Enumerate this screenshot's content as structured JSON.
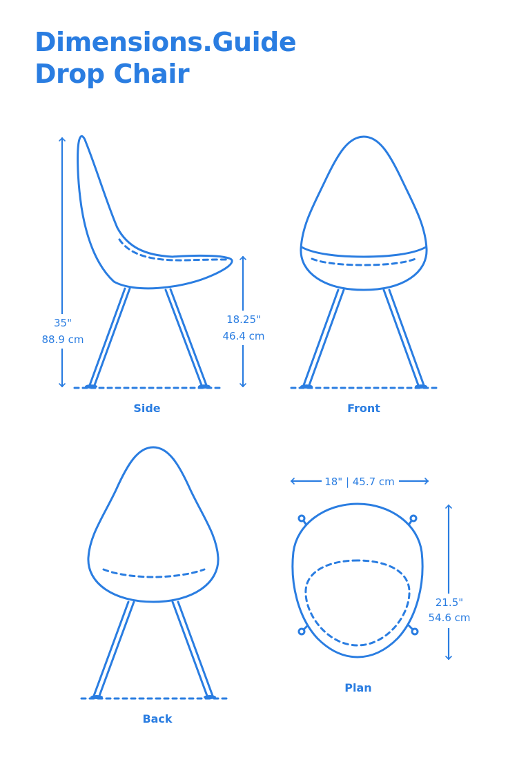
{
  "header": {
    "brand": "Dimensions.Guide",
    "subject": "Drop Chair"
  },
  "colors": {
    "accent": "#2a7de1",
    "background": "#ffffff"
  },
  "views": {
    "side": {
      "label": "Side",
      "height_imperial": "35\"",
      "height_metric": "88.9 cm",
      "seat_height_imperial": "18.25\"",
      "seat_height_metric": "46.4 cm"
    },
    "front": {
      "label": "Front"
    },
    "back": {
      "label": "Back"
    },
    "plan": {
      "label": "Plan",
      "width": "18\" | 45.7 cm",
      "depth_imperial": "21.5\"",
      "depth_metric": "54.6 cm"
    }
  }
}
